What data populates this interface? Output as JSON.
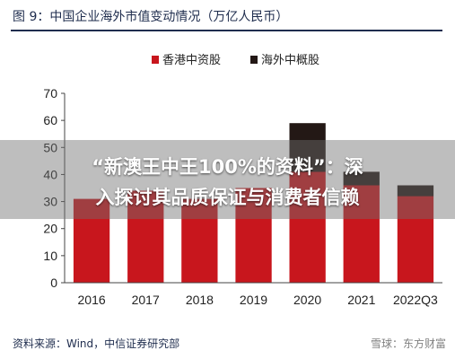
{
  "figure": {
    "title": "图 9：中国企业海外市值变动情况（万亿人民币）",
    "source": "资料来源：Wind，中信证券研究部",
    "watermark": "雪球：东方财富"
  },
  "overlay": {
    "line1": "“新澳王中王100%的资料”：深",
    "line2": "入探讨其品质保证与消费者信赖"
  },
  "chart_data": {
    "type": "bar",
    "stacked": true,
    "categories": [
      "2016",
      "2017",
      "2018",
      "2019",
      "2020",
      "2021",
      "2022Q3"
    ],
    "series": [
      {
        "name": "香港中资股",
        "color": "#c8161d",
        "values": [
          31,
          34,
          31,
          35,
          41,
          36,
          32
        ]
      },
      {
        "name": "海外中概股",
        "color": "#231815",
        "values": [
          0,
          0,
          0,
          0,
          18,
          5,
          4
        ]
      }
    ],
    "ylim": [
      0,
      70
    ],
    "yticks": [
      0,
      10,
      20,
      30,
      40,
      50,
      60,
      70
    ],
    "legend": "top-center",
    "grid": false
  }
}
